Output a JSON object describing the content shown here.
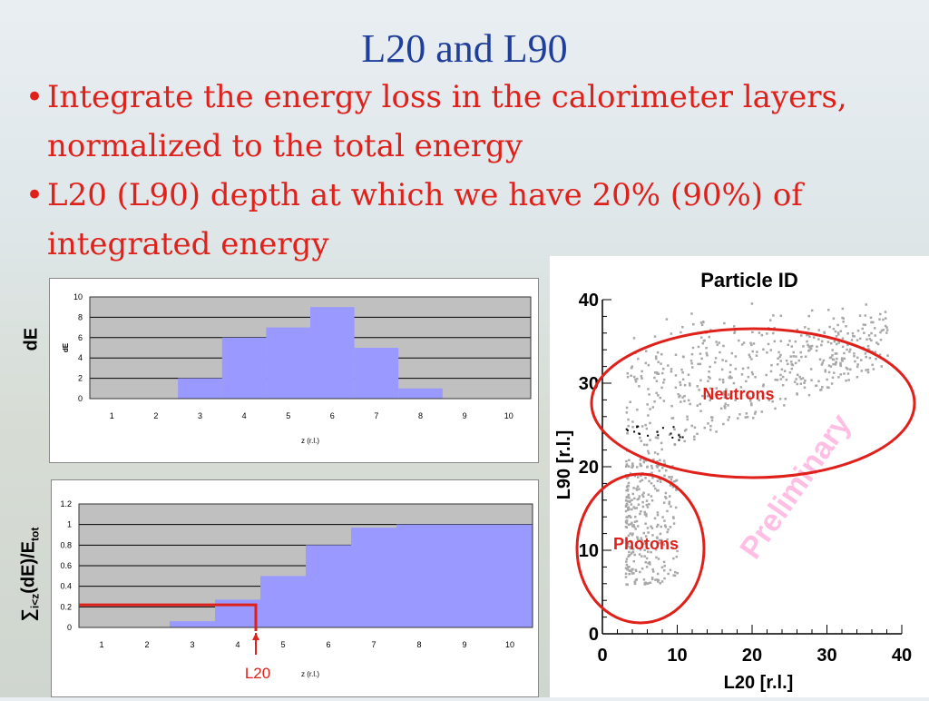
{
  "slide": {
    "title": "L20 and L90",
    "bullets": [
      "Integrate the energy loss in the calorimeter layers, normalized to the total energy",
      "L20 (L90) depth at which we have 20% (90%) of integrated energy"
    ]
  },
  "de_chart": {
    "side_label": "dE",
    "axis_ylabel": "dE",
    "xlabel": "z (r.l.)",
    "colors": {
      "bar": "#9999ff",
      "plot_bg": "#c0c0c0"
    }
  },
  "cum_chart": {
    "side_label_parts": {
      "sum": "∑",
      "sub": "i<z",
      "mid": "(dE)/E",
      "sub2": "tot"
    },
    "xlabel": "z (r.l.)",
    "marker_label": "L20",
    "marker_color": "#e0201a"
  },
  "scatter": {
    "title": "Particle ID",
    "xlabel": "L20 [r.l.]",
    "ylabel": "L90  [r.l.]",
    "watermark": "Preliminary",
    "neutrons_label": "Neutrons",
    "photons_label": "Photons",
    "colors": {
      "points": "#a8a8a8",
      "ellipse": "#e0201a",
      "watermark": "#ff88cc"
    }
  },
  "chart_data": [
    {
      "type": "bar",
      "categories": [
        "1",
        "2",
        "3",
        "4",
        "5",
        "6",
        "7",
        "8",
        "9",
        "10"
      ],
      "values": [
        0,
        0,
        2,
        6,
        7,
        9,
        5,
        1,
        0,
        0
      ],
      "title": "",
      "xlabel": "z (r.l.)",
      "ylabel": "dE",
      "ylim": [
        0,
        10
      ],
      "yticks": [
        "0",
        "2",
        "4",
        "6",
        "8",
        "10"
      ],
      "grid": true
    },
    {
      "type": "bar",
      "categories": [
        "1",
        "2",
        "3",
        "4",
        "5",
        "6",
        "7",
        "8",
        "9",
        "10"
      ],
      "values": [
        0,
        0,
        0.06,
        0.27,
        0.5,
        0.8,
        0.97,
        1,
        1,
        1
      ],
      "title": "",
      "xlabel": "z (r.l.)",
      "ylabel": "∑i<z(dE)/Etot",
      "ylim": [
        0,
        1.2
      ],
      "yticks": [
        "0",
        "0.2",
        "0.4",
        "0.6",
        "0.8",
        "1",
        "1.2"
      ],
      "grid": true
    },
    {
      "type": "scatter",
      "title": "Particle ID",
      "xlabel": "L20 [r.l.]",
      "ylabel": "L90  [r.l.]",
      "xlim": [
        0,
        40
      ],
      "ylim": [
        0,
        40
      ],
      "xticks": [
        "0",
        "10",
        "20",
        "30",
        "40"
      ],
      "yticks": [
        "0",
        "10",
        "20",
        "30",
        "40"
      ],
      "series": [
        {
          "name": "Neutrons",
          "region": {
            "x": [
              3,
              38
            ],
            "y": [
              20,
              40
            ]
          }
        },
        {
          "name": "Photons",
          "region": {
            "x": [
              3,
              10
            ],
            "y": [
              5,
              22
            ]
          }
        }
      ]
    }
  ]
}
